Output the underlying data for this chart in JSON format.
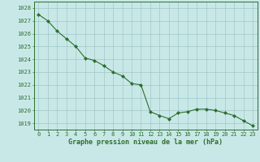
{
  "x": [
    0,
    1,
    2,
    3,
    4,
    5,
    6,
    7,
    8,
    9,
    10,
    11,
    12,
    13,
    14,
    15,
    16,
    17,
    18,
    19,
    20,
    21,
    22,
    23
  ],
  "y": [
    1027.5,
    1027.0,
    1026.2,
    1025.6,
    1025.0,
    1024.1,
    1023.9,
    1023.5,
    1023.0,
    1022.7,
    1022.1,
    1022.0,
    1019.9,
    1019.6,
    1019.35,
    1019.8,
    1019.9,
    1020.1,
    1020.1,
    1020.0,
    1019.8,
    1019.6,
    1019.2,
    1018.8
  ],
  "line_color": "#2d6e2d",
  "marker": "D",
  "marker_size": 2.0,
  "bg_color": "#c8e8e8",
  "grid_color": "#a0c8c8",
  "xlabel": "Graphe pression niveau de la mer (hPa)",
  "xlabel_color": "#2d6e2d",
  "tick_color": "#2d6e2d",
  "ylim_min": 1018.5,
  "ylim_max": 1028.5,
  "xtick_labels": [
    "0",
    "1",
    "2",
    "3",
    "4",
    "5",
    "6",
    "7",
    "8",
    "9",
    "10",
    "11",
    "12",
    "13",
    "14",
    "15",
    "16",
    "17",
    "18",
    "19",
    "20",
    "21",
    "22",
    "23"
  ]
}
